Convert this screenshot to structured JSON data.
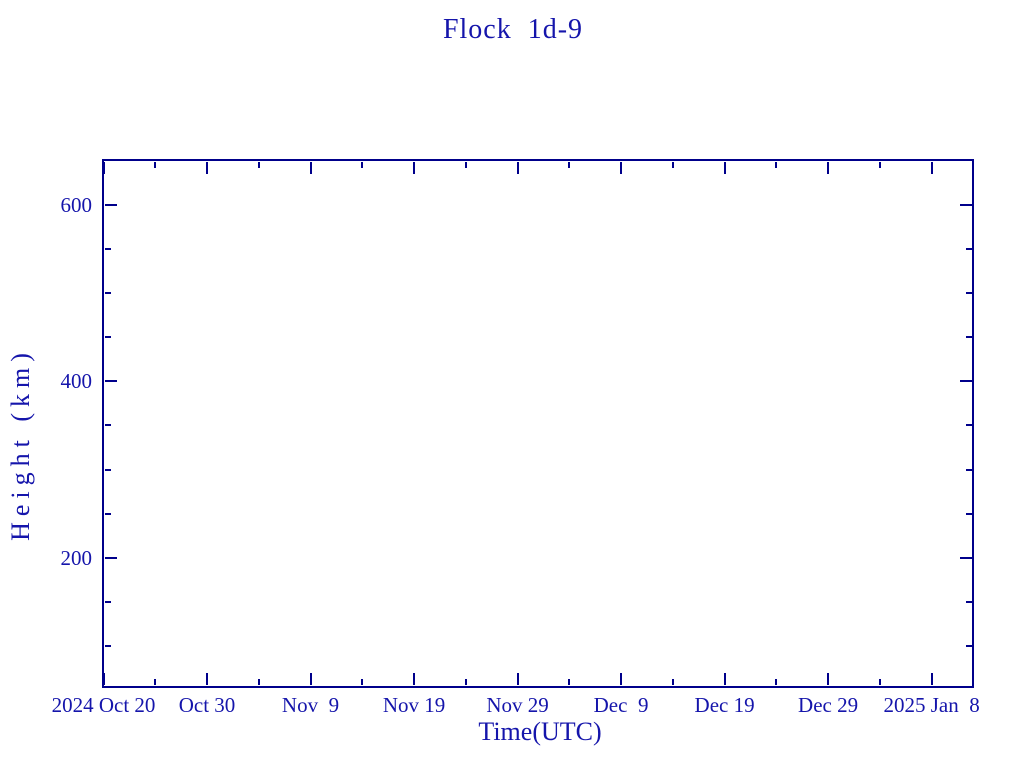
{
  "colors": {
    "background": "#ffffff",
    "axis_line": "#00008b",
    "text": "#1515ab"
  },
  "chart_data": {
    "type": "scatter",
    "title": "Flock  1d-9",
    "xlabel": "Time(UTC)",
    "ylabel": "Height (km)",
    "series": [],
    "grid": false,
    "legend": false,
    "x_axis": {
      "unit": "date",
      "start_label": "2024 Oct 20",
      "end_label": "2025 Jan 8",
      "range_days": [
        0,
        84
      ],
      "major_ticks": [
        {
          "label": "2024 Oct 20",
          "day": 0
        },
        {
          "label": "Oct 30",
          "day": 10
        },
        {
          "label": "Nov  9",
          "day": 20
        },
        {
          "label": "Nov 19",
          "day": 30
        },
        {
          "label": "Nov 29",
          "day": 40
        },
        {
          "label": "Dec  9",
          "day": 50
        },
        {
          "label": "Dec 19",
          "day": 60
        },
        {
          "label": "Dec 29",
          "day": 70
        },
        {
          "label": "2025 Jan  8",
          "day": 80
        }
      ],
      "minor_tick_days": [
        5,
        15,
        25,
        35,
        45,
        55,
        65,
        75
      ]
    },
    "y_axis": {
      "unit": "km",
      "range_km": [
        54.5,
        650
      ],
      "major_ticks": [
        {
          "label": "600",
          "value": 600
        },
        {
          "label": "400",
          "value": 400
        },
        {
          "label": "200",
          "value": 200
        }
      ],
      "minor_tick_values": [
        550,
        500,
        450,
        350,
        300,
        250,
        150,
        100
      ]
    }
  }
}
